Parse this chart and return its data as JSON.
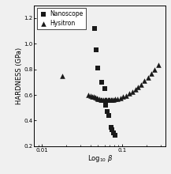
{
  "title": "",
  "xlabel": "Log$_{10}$ $\\beta$",
  "ylabel": "HARDNESS (GPa)",
  "ylim": [
    0.2,
    1.3
  ],
  "legend_labels": [
    "Nanoscope",
    "Hysitron"
  ],
  "nanoscope_x": [
    0.045,
    0.047,
    0.05,
    0.055,
    0.06,
    0.062,
    0.065,
    0.068,
    0.072,
    0.075,
    0.078,
    0.082
  ],
  "nanoscope_y": [
    1.12,
    0.95,
    0.81,
    0.7,
    0.65,
    0.52,
    0.47,
    0.44,
    0.35,
    0.33,
    0.305,
    0.285
  ],
  "hysitron_x": [
    0.018,
    0.038,
    0.04,
    0.042,
    0.044,
    0.046,
    0.048,
    0.05,
    0.052,
    0.054,
    0.056,
    0.058,
    0.06,
    0.062,
    0.064,
    0.066,
    0.068,
    0.07,
    0.072,
    0.075,
    0.078,
    0.082,
    0.088,
    0.095,
    0.103,
    0.112,
    0.122,
    0.133,
    0.145,
    0.158,
    0.172,
    0.19,
    0.21,
    0.23,
    0.255,
    0.28
  ],
  "hysitron_y": [
    0.75,
    0.6,
    0.595,
    0.59,
    0.585,
    0.58,
    0.576,
    0.572,
    0.568,
    0.565,
    0.563,
    0.562,
    0.561,
    0.56,
    0.56,
    0.56,
    0.56,
    0.56,
    0.561,
    0.562,
    0.564,
    0.567,
    0.572,
    0.578,
    0.586,
    0.596,
    0.61,
    0.625,
    0.642,
    0.66,
    0.682,
    0.71,
    0.738,
    0.766,
    0.798,
    0.832
  ],
  "marker_square": "s",
  "marker_triangle": "^",
  "marker_size": 3,
  "color_square": "#1a1a1a",
  "color_triangle": "#1a1a1a",
  "bg_color": "#f0f0f0",
  "xticks": [
    0.01,
    0.1
  ],
  "yticks": [
    0.2,
    0.4,
    0.6,
    0.8,
    1.0,
    1.2
  ],
  "legend_fontsize": 5.5,
  "axis_fontsize": 6,
  "tick_fontsize": 5
}
